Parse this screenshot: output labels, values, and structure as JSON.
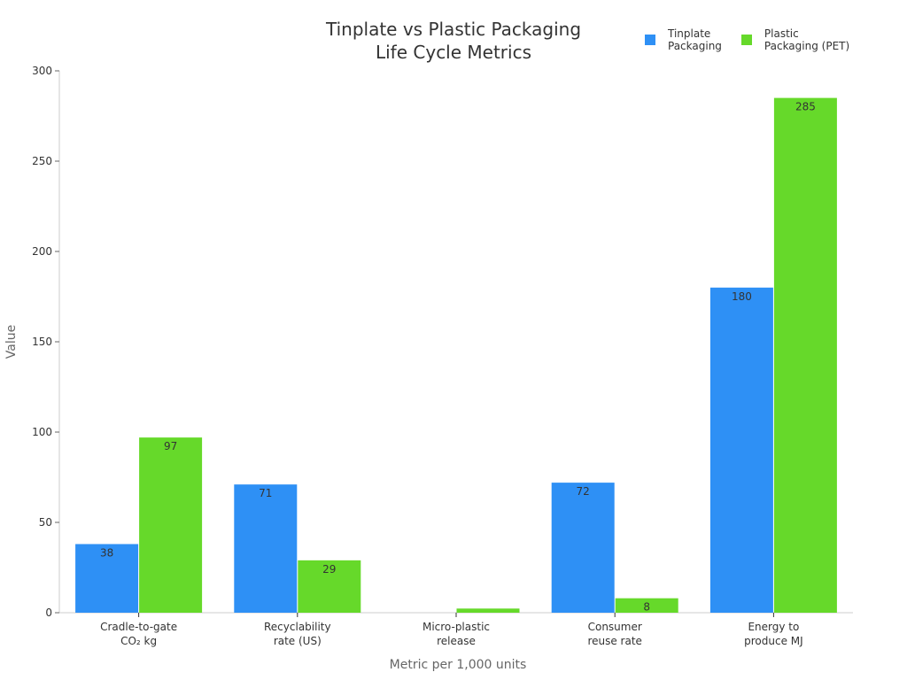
{
  "chart_data": {
    "type": "bar",
    "title": "Tinplate vs Plastic Packaging\nLife Cycle Metrics",
    "title_lines": [
      "Tinplate vs Plastic Packaging",
      "Life Cycle Metrics"
    ],
    "xlabel": "Metric per 1,000 units",
    "ylabel": "Value",
    "ylim": [
      0,
      300
    ],
    "yticks": [
      0,
      50,
      100,
      150,
      200,
      250,
      300
    ],
    "grid": false,
    "legend_position": "top-right",
    "categories": [
      "Cradle-to-gate CO₂ kg",
      "Recyclability rate (US)",
      "Micro-plastic release",
      "Consumer reuse rate",
      "Energy to produce MJ"
    ],
    "category_lines": [
      [
        "Cradle-to-gate",
        "CO₂ kg"
      ],
      [
        "Recyclability",
        "rate (US)"
      ],
      [
        "Micro-plastic",
        "release"
      ],
      [
        "Consumer",
        "reuse rate"
      ],
      [
        "Energy to",
        "produce MJ"
      ]
    ],
    "series": [
      {
        "name": "Tinplate Packaging",
        "legend_lines": "Tinplate\nPackaging",
        "color": "#2e90f5",
        "values": [
          38,
          71,
          0,
          72,
          180
        ]
      },
      {
        "name": "Plastic Packaging (PET)",
        "legend_lines": "Plastic\nPackaging (PET)",
        "color": "#66d92a",
        "values": [
          97,
          29,
          2.3,
          8,
          285
        ]
      }
    ]
  }
}
